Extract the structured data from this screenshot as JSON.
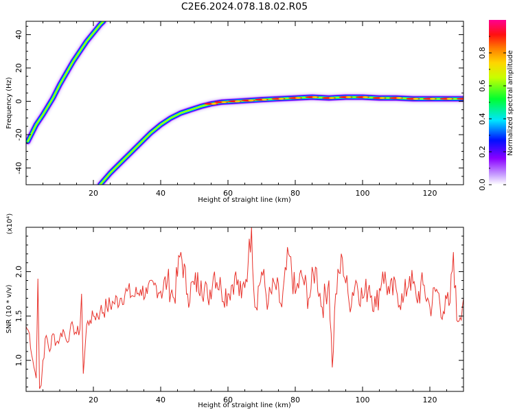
{
  "title": "C2E6.2024.078.18.02.R05",
  "colors": {
    "snr_line": "#e8312a",
    "background": "#ffffff",
    "axis": "#000000"
  },
  "chart_data": [
    {
      "type": "heatmap",
      "name": "spectrogram",
      "xlabel": "Height of straight line (km)",
      "ylabel": "Frequency (Hz)",
      "xlim": [
        0,
        130
      ],
      "ylim": [
        -50,
        48
      ],
      "x_ticks": [
        20,
        40,
        60,
        80,
        100,
        120
      ],
      "y_ticks": [
        -40,
        -20,
        0,
        20,
        40
      ],
      "y_tick_labels": [
        "-40",
        "-20",
        "0",
        "20",
        "40"
      ],
      "colorbar": {
        "label": "Normalized spectral amplitude",
        "range": [
          0,
          1
        ],
        "ticks": [
          0.0,
          0.2,
          0.4,
          0.6,
          0.8
        ],
        "tick_labels": [
          "0.0",
          "0.2",
          "0.4",
          "0.6",
          "0.8"
        ],
        "colormap": "rainbow (white → violet → blue → cyan → green → yellow → orange → red → pink)"
      },
      "traces": [
        {
          "description": "upper steep trace",
          "points": [
            [
              0.5,
              -24
            ],
            [
              3,
              -14
            ],
            [
              5,
              -8
            ],
            [
              8,
              2
            ],
            [
              10,
              10
            ],
            [
              12,
              17
            ],
            [
              14,
              24
            ],
            [
              16,
              30
            ],
            [
              18,
              36
            ],
            [
              20,
              41
            ],
            [
              22,
              46
            ],
            [
              23,
              48
            ]
          ]
        },
        {
          "description": "lower trace leveling off near 0 Hz",
          "points": [
            [
              22,
              -50
            ],
            [
              25,
              -43
            ],
            [
              28,
              -37
            ],
            [
              31,
              -31
            ],
            [
              34,
              -25
            ],
            [
              37,
              -19
            ],
            [
              40,
              -14
            ],
            [
              43,
              -10
            ],
            [
              46,
              -7
            ],
            [
              49,
              -5
            ],
            [
              52,
              -3
            ],
            [
              55,
              -1.5
            ],
            [
              58,
              -0.5
            ],
            [
              62,
              0
            ],
            [
              66,
              0.5
            ],
            [
              70,
              1
            ],
            [
              75,
              1.5
            ],
            [
              80,
              2
            ],
            [
              85,
              2.5
            ],
            [
              90,
              2
            ],
            [
              95,
              2.5
            ],
            [
              100,
              2.5
            ],
            [
              105,
              2
            ],
            [
              110,
              2
            ],
            [
              115,
              1.5
            ],
            [
              120,
              1.5
            ],
            [
              125,
              1.5
            ],
            [
              130,
              1.5
            ]
          ]
        }
      ]
    },
    {
      "type": "line",
      "name": "snr",
      "xlabel": "Height of straight line (km)",
      "ylabel": "SNR (10 * v/v)",
      "y_multiplier": "(x10⁴)",
      "xlim": [
        0,
        130
      ],
      "ylim": [
        0.65,
        2.5
      ],
      "x_ticks": [
        20,
        40,
        60,
        80,
        100,
        120
      ],
      "y_ticks": [
        1.0,
        1.5,
        2.0
      ],
      "y_tick_labels": [
        "1.0",
        "1.5",
        "2.0"
      ],
      "series": [
        {
          "values_description": "noisy SNR vs height",
          "x": [
            0,
            1,
            2,
            3,
            3.5,
            4,
            4.5,
            5,
            6,
            7,
            8,
            9,
            10,
            11,
            12,
            13,
            14,
            15,
            16,
            16.5,
            17,
            18,
            19,
            20,
            22,
            24,
            26,
            28,
            30,
            32,
            34,
            36,
            38,
            40,
            42,
            44,
            46,
            48,
            50,
            52,
            54,
            56,
            58,
            60,
            62,
            64,
            66,
            67,
            68,
            70,
            72,
            74,
            76,
            78,
            80,
            82,
            84,
            86,
            88,
            90,
            91,
            92,
            94,
            96,
            98,
            100,
            102,
            104,
            106,
            108,
            110,
            112,
            114,
            116,
            118,
            120,
            122,
            124,
            126,
            127,
            128,
            130
          ],
          "values": [
            1.38,
            1.3,
            1.0,
            0.8,
            1.92,
            0.68,
            0.72,
            1.0,
            1.28,
            1.1,
            1.3,
            1.2,
            1.25,
            1.35,
            1.22,
            1.32,
            1.38,
            1.3,
            1.35,
            1.75,
            0.85,
            1.4,
            1.45,
            1.5,
            1.55,
            1.6,
            1.65,
            1.7,
            1.78,
            1.72,
            1.8,
            1.75,
            1.85,
            1.78,
            1.9,
            1.7,
            2.22,
            1.75,
            1.85,
            1.9,
            1.7,
            2.0,
            1.8,
            1.75,
            1.95,
            1.7,
            2.1,
            2.5,
            1.6,
            2.0,
            1.65,
            1.85,
            1.6,
            2.2,
            1.75,
            1.95,
            1.7,
            2.05,
            1.6,
            1.9,
            0.92,
            1.75,
            2.15,
            1.65,
            1.9,
            1.7,
            1.85,
            1.6,
            2.0,
            1.75,
            1.8,
            1.65,
            1.95,
            1.7,
            1.85,
            1.6,
            1.8,
            1.55,
            1.65,
            2.22,
            1.45,
            1.7
          ]
        }
      ]
    }
  ]
}
